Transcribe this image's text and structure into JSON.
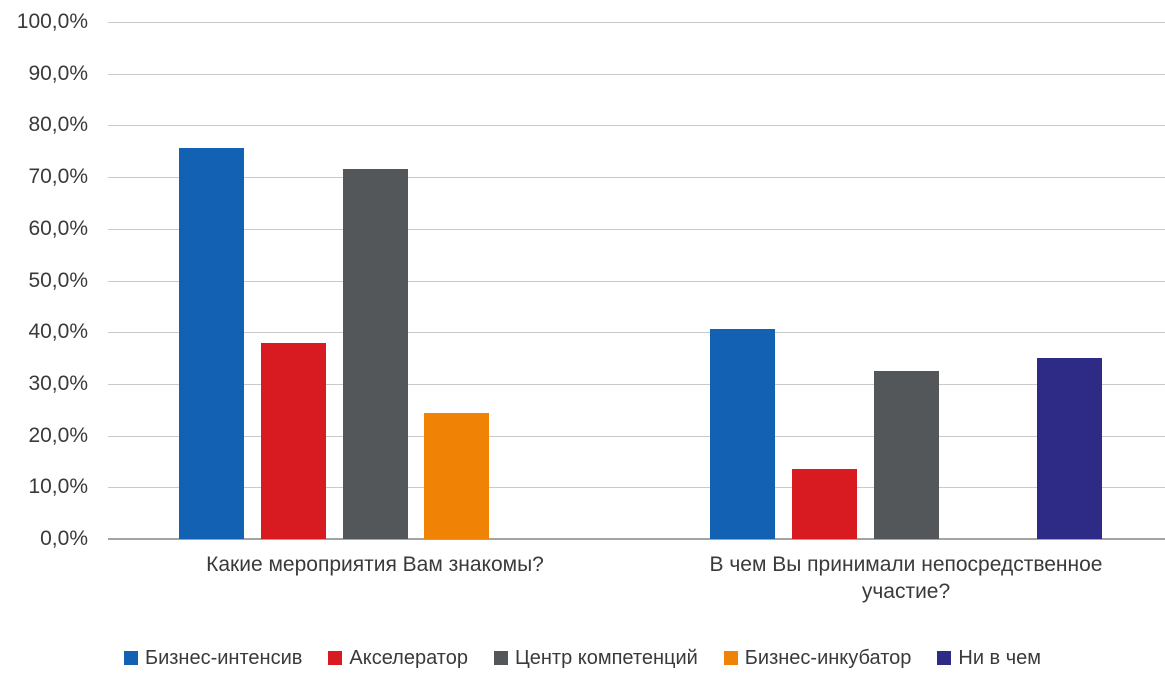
{
  "chart_data": {
    "type": "bar",
    "title": "",
    "xlabel": "",
    "ylabel": "",
    "categories": [
      "Какие мероприятия Вам знакомы?",
      "В чем Вы принимали непосредственное участие?"
    ],
    "series": [
      {
        "name": "Бизнес-интенсив",
        "color": "#1261b3",
        "values": [
          75.7,
          40.6
        ]
      },
      {
        "name": "Акселератор",
        "color": "#d81b21",
        "values": [
          38.0,
          13.6
        ]
      },
      {
        "name": "Центр компетенций",
        "color": "#545759",
        "values": [
          71.5,
          32.5
        ]
      },
      {
        "name": "Бизнес-инкубатор",
        "color": "#f08306",
        "values": [
          24.4,
          null
        ]
      },
      {
        "name": "Ни в чем",
        "color": "#2e2b87",
        "values": [
          null,
          35.1
        ]
      }
    ],
    "ylim": [
      0,
      100
    ],
    "ytick_step": 10,
    "ytick_labels": [
      "0,0%",
      "10,0%",
      "20,0%",
      "30,0%",
      "40,0%",
      "50,0%",
      "60,0%",
      "70,0%",
      "80,0%",
      "90,0%",
      "100,0%"
    ],
    "grid": true,
    "legend_position": "bottom"
  },
  "style": {
    "gridline_color": "#c9c9c9",
    "axis_line_color": "#a3a3a3",
    "text_color": "#3a3a3a"
  }
}
